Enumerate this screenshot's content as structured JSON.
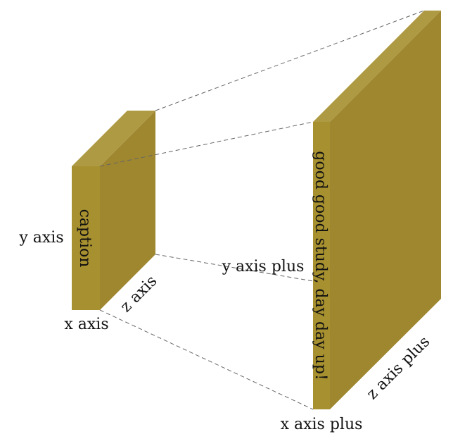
{
  "colors": {
    "front_face": "#A6902F",
    "side_face": "#9F8730",
    "top_face": "#AE9A42",
    "guide_line": "#666666"
  },
  "small_block": {
    "caption": "caption",
    "x_label": "x axis",
    "y_label": "y axis",
    "z_label": "z axis"
  },
  "large_block": {
    "caption": "good good study, day day up!",
    "x_label": "x axis plus",
    "y_label": "y axis plus",
    "z_label": "z axis plus"
  }
}
